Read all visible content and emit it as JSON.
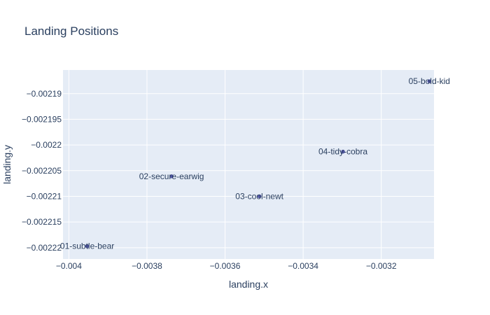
{
  "chart_data": {
    "type": "scatter",
    "title": "Landing Positions",
    "xlabel": "landing.x",
    "ylabel": "landing.y",
    "xlim": [
      -0.004015,
      -0.003065
    ],
    "ylim": [
      -0.0022222,
      -0.0021854
    ],
    "x_ticks": [
      -0.004,
      -0.0038,
      -0.0036,
      -0.0034,
      -0.0032
    ],
    "x_tick_labels": [
      "−0.004",
      "−0.0038",
      "−0.0036",
      "−0.0034",
      "−0.0032"
    ],
    "y_ticks": [
      -0.00219,
      -0.002195,
      -0.0022,
      -0.002205,
      -0.00221,
      -0.002215,
      -0.00222
    ],
    "y_tick_labels": [
      "−0.00219",
      "−0.002195",
      "−0.0022",
      "−0.002205",
      "−0.00221",
      "−0.002215",
      "−0.00222"
    ],
    "grid": true,
    "marker_color": "#5357a8",
    "plot_bgcolor": "#e5ecf6",
    "points": [
      {
        "label": "01-subtle-bear",
        "x": -0.003953,
        "y": -0.0022197
      },
      {
        "label": "02-secure-earwig",
        "x": -0.003737,
        "y": -0.0022061
      },
      {
        "label": "03-cool-newt",
        "x": -0.003512,
        "y": -0.00221
      },
      {
        "label": "04-tidy-cobra",
        "x": -0.003298,
        "y": -0.0022013
      },
      {
        "label": "05-bold-kid",
        "x": -0.003077,
        "y": -0.0021876
      }
    ]
  }
}
